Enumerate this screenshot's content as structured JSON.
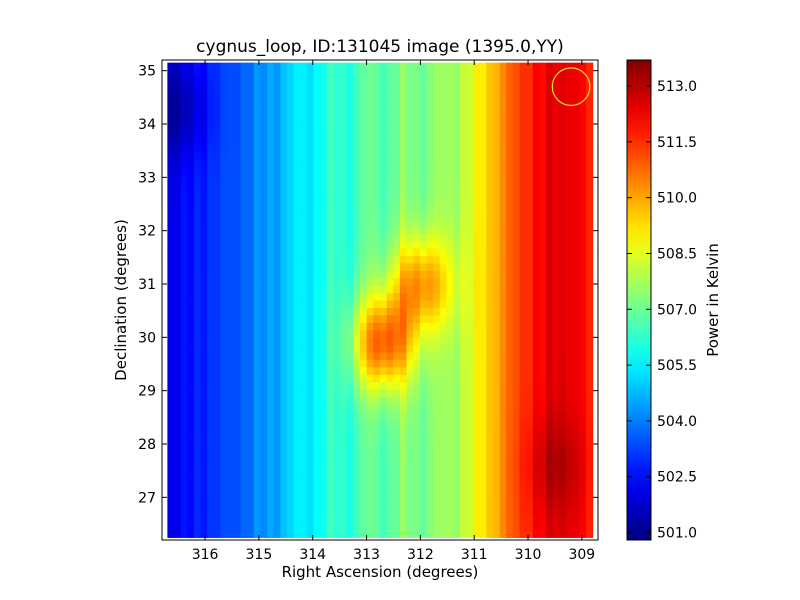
{
  "chart_data": {
    "type": "heatmap",
    "title": "cygnus_loop, ID:131045 image (1395.0,YY)",
    "xlabel": "Right Ascension (degrees)",
    "ylabel": "Declination (degrees)",
    "colorbar_label": "Power in Kelvin",
    "x_ticks": [
      316,
      315,
      314,
      313,
      312,
      311,
      310,
      309
    ],
    "x_tick_labels": [
      "316",
      "315",
      "314",
      "313",
      "312",
      "311",
      "310",
      "309"
    ],
    "y_ticks": [
      27,
      28,
      29,
      30,
      31,
      32,
      33,
      34,
      35
    ],
    "y_tick_labels": [
      "27",
      "28",
      "29",
      "30",
      "31",
      "32",
      "33",
      "34",
      "35"
    ],
    "xlim": [
      316.8,
      308.7
    ],
    "ylim": [
      26.2,
      35.2
    ],
    "colorbar_ticks": [
      501.0,
      502.5,
      504.0,
      505.5,
      507.0,
      508.5,
      510.0,
      511.5,
      513.0
    ],
    "colorbar_tick_labels": [
      "501.0",
      "502.5",
      "504.0",
      "505.5",
      "507.0",
      "508.5",
      "510.0",
      "511.5",
      "513.0"
    ],
    "colorbar_range": [
      500.8,
      513.7
    ],
    "colormap": "jet",
    "grid": false,
    "data_extent": {
      "ra": [
        316.7,
        308.8
      ],
      "dec": [
        26.25,
        35.15
      ]
    },
    "ra_profile": {
      "ra": [
        316.7,
        316.3,
        315.9,
        315.5,
        315.1,
        314.7,
        314.3,
        313.9,
        313.5,
        313.1,
        312.7,
        312.3,
        311.9,
        311.5,
        311.1,
        310.7,
        310.3,
        309.9,
        309.5,
        309.1,
        308.8
      ],
      "power": [
        502.0,
        502.6,
        503.0,
        503.4,
        503.9,
        504.6,
        505.2,
        505.8,
        506.2,
        506.6,
        506.9,
        507.1,
        507.3,
        507.5,
        508.3,
        509.6,
        510.9,
        511.9,
        512.5,
        512.3,
        511.6
      ]
    },
    "features": [
      {
        "label": "central_hotspot",
        "ra": 312.7,
        "dec": 29.9,
        "peak": 511.0
      },
      {
        "label": "upper_hotspot",
        "ra": 312.0,
        "dec": 31.0,
        "peak": 510.3
      },
      {
        "label": "southeast_peak",
        "ra": 309.5,
        "dec": 27.6,
        "peak": 513.2
      },
      {
        "label": "southwest_cool_corner",
        "ra": 316.5,
        "dec": 34.3,
        "peak": 501.2
      }
    ],
    "circle_marker": {
      "ra": 309.2,
      "dec": 34.7,
      "radius_deg": 0.35,
      "color": "#e8e81a"
    }
  }
}
